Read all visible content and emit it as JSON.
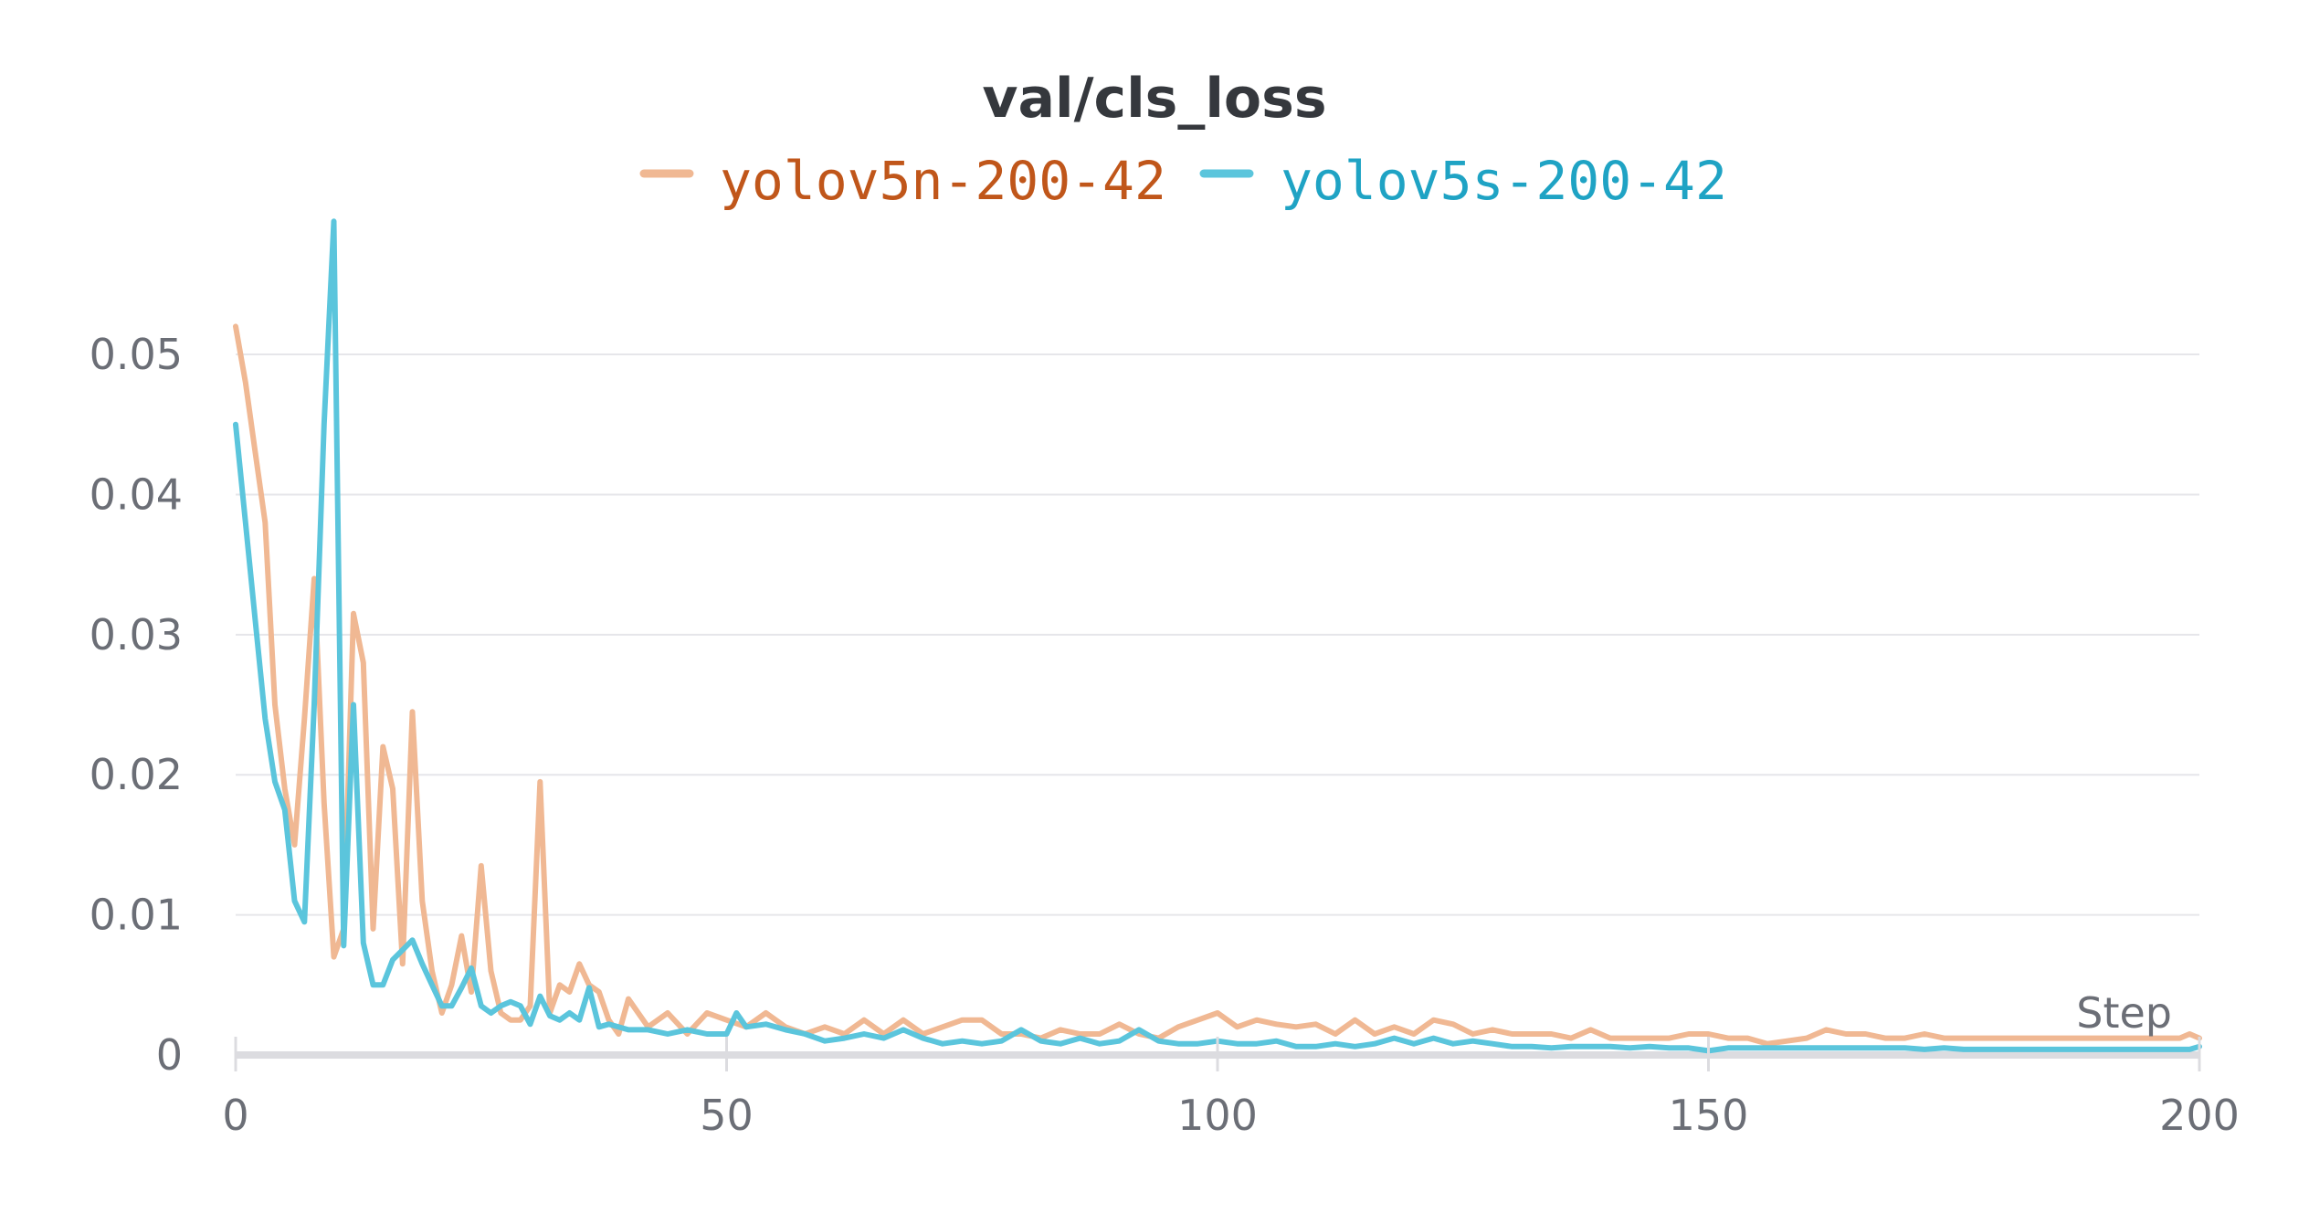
{
  "chart_data": {
    "type": "line",
    "title": "val/cls_loss",
    "xlabel": "Step",
    "ylabel": "",
    "xlim": [
      0,
      200
    ],
    "ylim": [
      0,
      0.059
    ],
    "x_ticks": [
      0,
      50,
      100,
      150,
      200
    ],
    "y_ticks": [
      0,
      0.01,
      0.02,
      0.03,
      0.04,
      0.05
    ],
    "y_tick_labels": [
      "0",
      "0.01",
      "0.02",
      "0.03",
      "0.04",
      "0.05"
    ],
    "grid": true,
    "legend_position": "top-center",
    "series": [
      {
        "name": "yolov5n-200-42",
        "color": "#f0b893",
        "label_color": "#c0561a",
        "points": [
          [
            0,
            0.052
          ],
          [
            1,
            0.048
          ],
          [
            2,
            0.043
          ],
          [
            3,
            0.038
          ],
          [
            4,
            0.025
          ],
          [
            5,
            0.019
          ],
          [
            6,
            0.015
          ],
          [
            7,
            0.024
          ],
          [
            8,
            0.034
          ],
          [
            9,
            0.018
          ],
          [
            10,
            0.007
          ],
          [
            11,
            0.009
          ],
          [
            12,
            0.0315
          ],
          [
            13,
            0.028
          ],
          [
            14,
            0.009
          ],
          [
            15,
            0.022
          ],
          [
            16,
            0.019
          ],
          [
            17,
            0.0065
          ],
          [
            18,
            0.0245
          ],
          [
            19,
            0.011
          ],
          [
            20,
            0.006
          ],
          [
            21,
            0.003
          ],
          [
            22,
            0.005
          ],
          [
            23,
            0.0085
          ],
          [
            24,
            0.0045
          ],
          [
            25,
            0.0135
          ],
          [
            26,
            0.006
          ],
          [
            27,
            0.003
          ],
          [
            28,
            0.0025
          ],
          [
            29,
            0.0025
          ],
          [
            30,
            0.0035
          ],
          [
            31,
            0.0195
          ],
          [
            32,
            0.003
          ],
          [
            33,
            0.005
          ],
          [
            34,
            0.0045
          ],
          [
            35,
            0.0065
          ],
          [
            36,
            0.005
          ],
          [
            37,
            0.0045
          ],
          [
            38,
            0.0025
          ],
          [
            39,
            0.0015
          ],
          [
            40,
            0.004
          ],
          [
            42,
            0.002
          ],
          [
            44,
            0.003
          ],
          [
            46,
            0.0015
          ],
          [
            48,
            0.003
          ],
          [
            50,
            0.0025
          ],
          [
            52,
            0.002
          ],
          [
            54,
            0.003
          ],
          [
            56,
            0.002
          ],
          [
            58,
            0.0015
          ],
          [
            60,
            0.002
          ],
          [
            62,
            0.0015
          ],
          [
            64,
            0.0025
          ],
          [
            66,
            0.0015
          ],
          [
            68,
            0.0025
          ],
          [
            70,
            0.0015
          ],
          [
            72,
            0.002
          ],
          [
            74,
            0.0025
          ],
          [
            76,
            0.0025
          ],
          [
            78,
            0.0015
          ],
          [
            80,
            0.0015
          ],
          [
            82,
            0.0012
          ],
          [
            84,
            0.0018
          ],
          [
            86,
            0.0015
          ],
          [
            88,
            0.0015
          ],
          [
            90,
            0.0022
          ],
          [
            92,
            0.0015
          ],
          [
            94,
            0.0012
          ],
          [
            96,
            0.002
          ],
          [
            98,
            0.0025
          ],
          [
            100,
            0.003
          ],
          [
            102,
            0.002
          ],
          [
            104,
            0.0025
          ],
          [
            106,
            0.0022
          ],
          [
            108,
            0.002
          ],
          [
            110,
            0.0022
          ],
          [
            112,
            0.0015
          ],
          [
            114,
            0.0025
          ],
          [
            116,
            0.0015
          ],
          [
            118,
            0.002
          ],
          [
            120,
            0.0015
          ],
          [
            122,
            0.0025
          ],
          [
            124,
            0.0022
          ],
          [
            126,
            0.0015
          ],
          [
            128,
            0.0018
          ],
          [
            130,
            0.0015
          ],
          [
            132,
            0.0015
          ],
          [
            134,
            0.0015
          ],
          [
            136,
            0.0012
          ],
          [
            138,
            0.0018
          ],
          [
            140,
            0.0012
          ],
          [
            142,
            0.0012
          ],
          [
            144,
            0.0012
          ],
          [
            146,
            0.0012
          ],
          [
            148,
            0.0015
          ],
          [
            150,
            0.0015
          ],
          [
            152,
            0.0012
          ],
          [
            154,
            0.0012
          ],
          [
            156,
            0.0008
          ],
          [
            158,
            0.001
          ],
          [
            160,
            0.0012
          ],
          [
            162,
            0.0018
          ],
          [
            164,
            0.0015
          ],
          [
            166,
            0.0015
          ],
          [
            168,
            0.0012
          ],
          [
            170,
            0.0012
          ],
          [
            172,
            0.0015
          ],
          [
            174,
            0.0012
          ],
          [
            176,
            0.0012
          ],
          [
            178,
            0.0012
          ],
          [
            180,
            0.0012
          ],
          [
            182,
            0.0012
          ],
          [
            184,
            0.0012
          ],
          [
            186,
            0.0012
          ],
          [
            188,
            0.0012
          ],
          [
            190,
            0.0012
          ],
          [
            192,
            0.0012
          ],
          [
            194,
            0.0012
          ],
          [
            196,
            0.0012
          ],
          [
            198,
            0.0012
          ],
          [
            199,
            0.0015
          ],
          [
            200,
            0.0012
          ]
        ]
      },
      {
        "name": "yolov5s-200-42",
        "color": "#5bc5dc",
        "label_color": "#1fa3c4",
        "points": [
          [
            0,
            0.045
          ],
          [
            1,
            0.038
          ],
          [
            2,
            0.031
          ],
          [
            3,
            0.024
          ],
          [
            4,
            0.0195
          ],
          [
            5,
            0.0175
          ],
          [
            6,
            0.011
          ],
          [
            7,
            0.0095
          ],
          [
            8,
            0.025
          ],
          [
            9,
            0.045
          ],
          [
            10,
            0.0595
          ],
          [
            11,
            0.0078
          ],
          [
            12,
            0.025
          ],
          [
            13,
            0.008
          ],
          [
            14,
            0.005
          ],
          [
            15,
            0.005
          ],
          [
            16,
            0.0068
          ],
          [
            17,
            0.0075
          ],
          [
            18,
            0.0082
          ],
          [
            19,
            0.0065
          ],
          [
            20,
            0.005
          ],
          [
            21,
            0.0035
          ],
          [
            22,
            0.0035
          ],
          [
            23,
            0.0048
          ],
          [
            24,
            0.0062
          ],
          [
            25,
            0.0035
          ],
          [
            26,
            0.003
          ],
          [
            27,
            0.0035
          ],
          [
            28,
            0.0038
          ],
          [
            29,
            0.0035
          ],
          [
            30,
            0.0022
          ],
          [
            31,
            0.0042
          ],
          [
            32,
            0.0028
          ],
          [
            33,
            0.0025
          ],
          [
            34,
            0.003
          ],
          [
            35,
            0.0025
          ],
          [
            36,
            0.0048
          ],
          [
            37,
            0.002
          ],
          [
            38,
            0.0022
          ],
          [
            40,
            0.0018
          ],
          [
            42,
            0.0018
          ],
          [
            44,
            0.0015
          ],
          [
            46,
            0.0018
          ],
          [
            48,
            0.0015
          ],
          [
            50,
            0.0015
          ],
          [
            51,
            0.003
          ],
          [
            52,
            0.002
          ],
          [
            54,
            0.0022
          ],
          [
            56,
            0.0018
          ],
          [
            58,
            0.0015
          ],
          [
            60,
            0.001
          ],
          [
            62,
            0.0012
          ],
          [
            64,
            0.0015
          ],
          [
            66,
            0.0012
          ],
          [
            68,
            0.0018
          ],
          [
            70,
            0.0012
          ],
          [
            72,
            0.0008
          ],
          [
            74,
            0.001
          ],
          [
            76,
            0.0008
          ],
          [
            78,
            0.001
          ],
          [
            80,
            0.0018
          ],
          [
            82,
            0.001
          ],
          [
            84,
            0.0008
          ],
          [
            86,
            0.0012
          ],
          [
            88,
            0.0008
          ],
          [
            90,
            0.001
          ],
          [
            92,
            0.0018
          ],
          [
            94,
            0.001
          ],
          [
            96,
            0.0008
          ],
          [
            98,
            0.0008
          ],
          [
            100,
            0.001
          ],
          [
            102,
            0.0008
          ],
          [
            104,
            0.0008
          ],
          [
            106,
            0.001
          ],
          [
            108,
            0.0006
          ],
          [
            110,
            0.0006
          ],
          [
            112,
            0.0008
          ],
          [
            114,
            0.0006
          ],
          [
            116,
            0.0008
          ],
          [
            118,
            0.0012
          ],
          [
            120,
            0.0008
          ],
          [
            122,
            0.0012
          ],
          [
            124,
            0.0008
          ],
          [
            126,
            0.001
          ],
          [
            128,
            0.0008
          ],
          [
            130,
            0.0006
          ],
          [
            132,
            0.0006
          ],
          [
            134,
            0.0005
          ],
          [
            136,
            0.0006
          ],
          [
            138,
            0.0006
          ],
          [
            140,
            0.0006
          ],
          [
            142,
            0.0005
          ],
          [
            144,
            0.0006
          ],
          [
            146,
            0.0005
          ],
          [
            148,
            0.0005
          ],
          [
            150,
            0.0003
          ],
          [
            152,
            0.0005
          ],
          [
            154,
            0.0005
          ],
          [
            156,
            0.0005
          ],
          [
            158,
            0.0005
          ],
          [
            160,
            0.0005
          ],
          [
            162,
            0.0005
          ],
          [
            164,
            0.0005
          ],
          [
            166,
            0.0005
          ],
          [
            168,
            0.0005
          ],
          [
            170,
            0.0005
          ],
          [
            172,
            0.0004
          ],
          [
            174,
            0.0005
          ],
          [
            176,
            0.0004
          ],
          [
            178,
            0.0004
          ],
          [
            180,
            0.0004
          ],
          [
            182,
            0.0004
          ],
          [
            184,
            0.0004
          ],
          [
            186,
            0.0004
          ],
          [
            188,
            0.0004
          ],
          [
            190,
            0.0004
          ],
          [
            192,
            0.0004
          ],
          [
            194,
            0.0004
          ],
          [
            196,
            0.0004
          ],
          [
            198,
            0.0004
          ],
          [
            199,
            0.0004
          ],
          [
            200,
            0.0006
          ]
        ]
      }
    ]
  }
}
